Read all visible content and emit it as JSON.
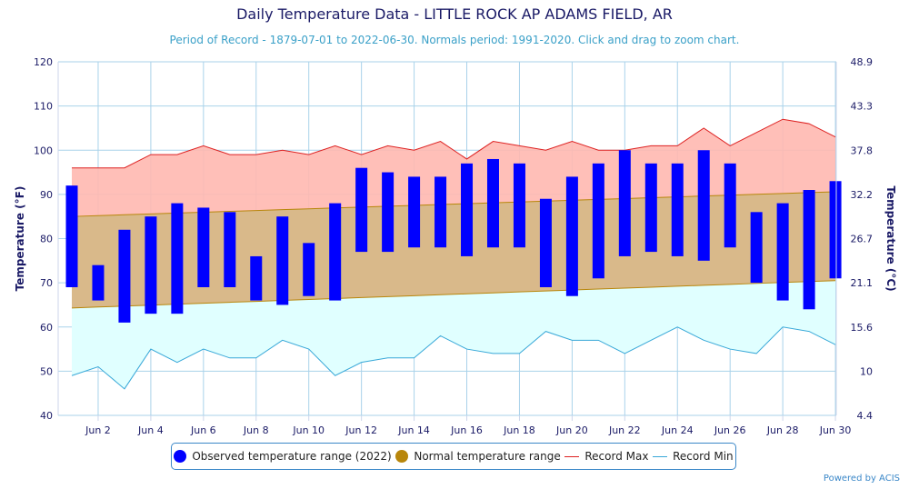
{
  "title": "Daily Temperature Data - LITTLE ROCK AP ADAMS FIELD, AR",
  "subtitle": "Period of Record - 1879-07-01 to 2022-06-30. Normals period: 1991-2020. Click and drag to zoom chart.",
  "powered_by": "Powered by ACIS",
  "legend": {
    "observed": "Observed temperature range (2022)",
    "normal": "Normal temperature range",
    "record_max": "Record Max",
    "record_min": "Record Min"
  },
  "colors": {
    "observed": "#0000ff",
    "normal_fill": "#d9b98a",
    "normal_dot": "#b8860b",
    "record_max_line": "#dd2222",
    "record_max_fill": "#ffb8b0",
    "record_min_line": "#38a8d8",
    "record_min_fill": "#e0ffff",
    "axis_text": "#1a1a66",
    "grid": "#a9d2ea"
  },
  "chart_data": {
    "type": "bar",
    "ylabel": "Temperature (°F)",
    "ylabel_right": "Temperature (°C)",
    "ylim": [
      40,
      120
    ],
    "yticks": [
      40,
      50,
      60,
      70,
      80,
      90,
      100,
      110,
      120
    ],
    "yticks_right": [
      "4.4",
      "10",
      "15.6",
      "21.1",
      "26.7",
      "32.2",
      "37.8",
      "43.3",
      "48.9"
    ],
    "xlim": [
      1,
      30
    ],
    "xticks": [
      2,
      4,
      6,
      8,
      10,
      12,
      14,
      16,
      18,
      20,
      22,
      24,
      26,
      28,
      30
    ],
    "xtick_labels": [
      "Jun 2",
      "Jun 4",
      "Jun 6",
      "Jun 8",
      "Jun 10",
      "Jun 12",
      "Jun 14",
      "Jun 16",
      "Jun 18",
      "Jun 20",
      "Jun 22",
      "Jun 24",
      "Jun 26",
      "Jun 28",
      "Jun 30"
    ],
    "days": [
      1,
      2,
      3,
      4,
      5,
      6,
      7,
      8,
      9,
      10,
      11,
      12,
      13,
      14,
      15,
      16,
      17,
      18,
      19,
      20,
      21,
      22,
      23,
      24,
      25,
      26,
      27,
      28,
      29,
      30
    ],
    "observed_low": [
      69,
      66,
      61,
      63,
      63,
      69,
      69,
      66,
      65,
      67,
      66,
      77,
      77,
      78,
      78,
      76,
      78,
      78,
      69,
      67,
      71,
      76,
      77,
      76,
      75,
      78,
      70,
      66,
      64,
      71
    ],
    "observed_high": [
      92,
      74,
      82,
      85,
      88,
      87,
      86,
      76,
      85,
      79,
      88,
      96,
      95,
      94,
      94,
      97,
      98,
      97,
      89,
      94,
      97,
      100,
      97,
      97,
      100,
      97,
      86,
      88,
      91,
      93
    ],
    "normal_low_start": 64.3,
    "normal_low_end": 70.5,
    "normal_high_start": 85.0,
    "normal_high_end": 90.6,
    "record_max": [
      96,
      96,
      96,
      99,
      99,
      101,
      99,
      99,
      100,
      99,
      101,
      99,
      101,
      100,
      102,
      98,
      102,
      101,
      100,
      102,
      100,
      100,
      101,
      101,
      105,
      101,
      null,
      107,
      106,
      103
    ],
    "record_min": [
      49,
      51,
      46,
      55,
      52,
      55,
      53,
      53,
      57,
      55,
      49,
      52,
      53,
      53,
      58,
      55,
      54,
      54,
      59,
      57,
      57,
      54,
      null,
      60,
      57,
      55,
      54,
      60,
      59,
      56
    ]
  }
}
